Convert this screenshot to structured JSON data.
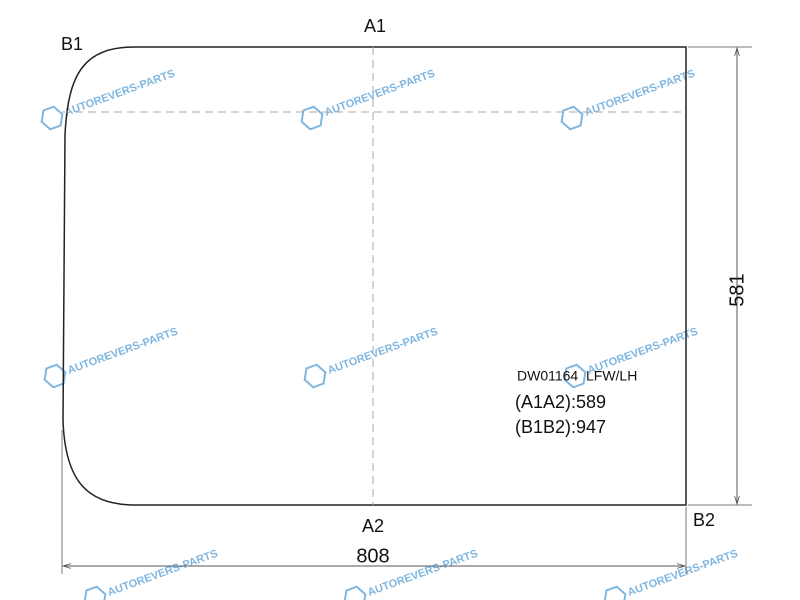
{
  "labels": {
    "a1": "A1",
    "a2": "A2",
    "b1": "B1",
    "b2": "B2"
  },
  "dimensions": {
    "width": 808,
    "height": 581
  },
  "info": {
    "part_code": "DW01164  LFW/LH",
    "a1a2": "(A1A2):589",
    "b1b2": "(B1B2):947"
  },
  "watermark": "AUTOREVERS-PARTS"
}
